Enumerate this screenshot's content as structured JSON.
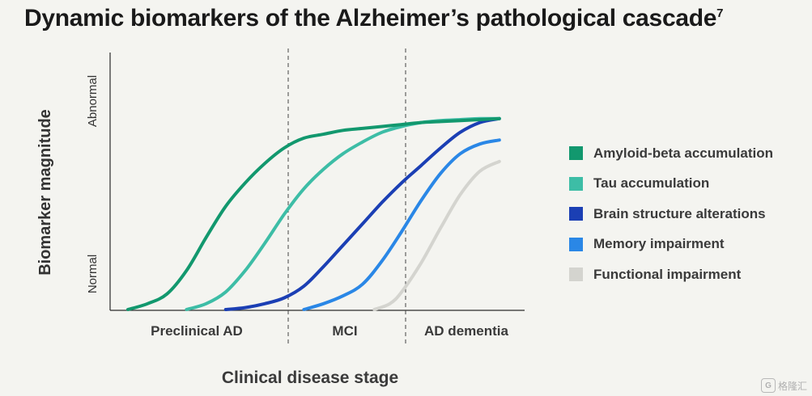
{
  "title": "Dynamic biomarkers of the Alzheimer’s pathological cascade",
  "title_superscript": "7",
  "chart_data": {
    "type": "line",
    "title": "Dynamic biomarkers of the Alzheimer’s pathological cascade",
    "xlabel": "Clinical disease stage",
    "ylabel": "Biomarker magnitude",
    "y_tick_labels": [
      "Normal",
      "Abnormal"
    ],
    "stages": [
      "Preclinical AD",
      "MCI",
      "AD dementia"
    ],
    "xlim": [
      0,
      10
    ],
    "ylim": [
      0,
      1
    ],
    "grid": false,
    "legend_position": "right",
    "series": [
      {
        "name": "Amyloid-beta accumulation",
        "color": "#12986e",
        "x": [
          0.0,
          0.5,
          1.0,
          1.5,
          2.0,
          2.5,
          3.0,
          3.5,
          4.0,
          4.5,
          5.0,
          5.5,
          6.0,
          6.5,
          7.0,
          7.5,
          8.0,
          8.5,
          9.0,
          9.5
        ],
        "y": [
          0.0,
          0.03,
          0.08,
          0.2,
          0.37,
          0.53,
          0.65,
          0.75,
          0.83,
          0.88,
          0.9,
          0.92,
          0.93,
          0.94,
          0.95,
          0.96,
          0.965,
          0.97,
          0.975,
          0.98
        ]
      },
      {
        "name": "Tau accumulation",
        "color": "#3dbda6",
        "x": [
          1.5,
          2.0,
          2.5,
          3.0,
          3.5,
          4.0,
          4.5,
          5.0,
          5.5,
          6.0,
          6.5,
          7.0,
          7.5,
          8.0,
          8.5,
          9.0,
          9.5
        ],
        "y": [
          0.0,
          0.03,
          0.09,
          0.2,
          0.34,
          0.49,
          0.62,
          0.72,
          0.8,
          0.86,
          0.91,
          0.94,
          0.96,
          0.97,
          0.975,
          0.98,
          0.98
        ]
      },
      {
        "name": "Brain structure alterations",
        "color": "#1b3fb4",
        "x": [
          2.5,
          3.0,
          3.5,
          4.0,
          4.5,
          5.0,
          5.5,
          6.0,
          6.5,
          7.0,
          7.5,
          8.0,
          8.5,
          9.0,
          9.5
        ],
        "y": [
          0.0,
          0.01,
          0.03,
          0.06,
          0.12,
          0.22,
          0.33,
          0.44,
          0.55,
          0.65,
          0.74,
          0.83,
          0.91,
          0.96,
          0.98
        ]
      },
      {
        "name": "Memory impairment",
        "color": "#2a87e6",
        "x": [
          4.5,
          5.0,
          5.5,
          6.0,
          6.5,
          7.0,
          7.5,
          8.0,
          8.5,
          9.0,
          9.5
        ],
        "y": [
          0.0,
          0.03,
          0.07,
          0.13,
          0.25,
          0.4,
          0.56,
          0.7,
          0.8,
          0.85,
          0.87
        ]
      },
      {
        "name": "Functional impairment",
        "color": "#d4d4cf",
        "x": [
          6.3,
          6.7,
          7.0,
          7.5,
          8.0,
          8.5,
          9.0,
          9.5
        ],
        "y": [
          0.0,
          0.03,
          0.09,
          0.24,
          0.42,
          0.59,
          0.71,
          0.76
        ]
      }
    ]
  },
  "watermark": "格隆汇",
  "watermark_icon": "G"
}
